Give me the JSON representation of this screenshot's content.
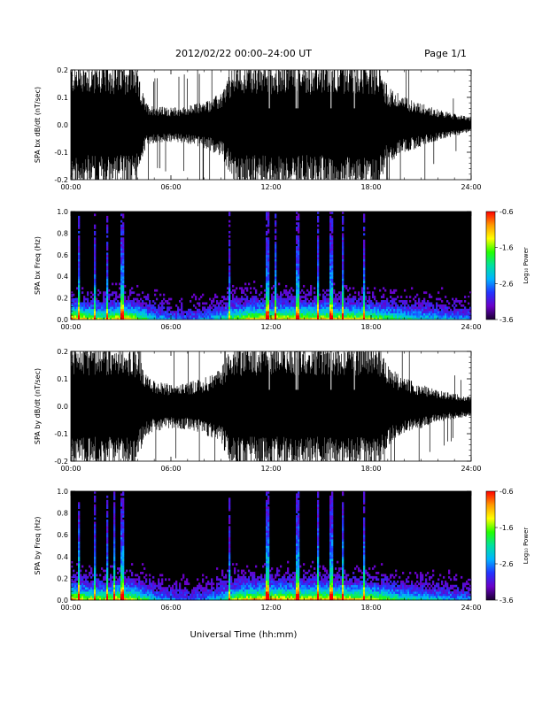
{
  "header": {
    "title": "2012/02/22  00:00–24:00 UT",
    "page": "Page 1/1"
  },
  "xaxis_title": "Universal Time (hh:mm)",
  "colors": {
    "background": "#ffffff",
    "signal": "#000000",
    "spectrogram_background": "#000000",
    "colormap": [
      "#1a0030",
      "#6a00c8",
      "#2233ff",
      "#00b4ff",
      "#00e0a0",
      "#22ff00",
      "#ffff00",
      "#ff9900",
      "#ff0000"
    ]
  },
  "chart_data": [
    {
      "type": "line",
      "id": "bx-waveform",
      "ylabel": "SPA bx dB/dt (nT/sec)",
      "xlim": [
        0,
        24
      ],
      "ylim": [
        -0.2,
        0.2
      ],
      "xticks": [
        "00:00",
        "06:00",
        "12:00",
        "18:00",
        "24:00"
      ],
      "yticks": [
        "-0.2",
        "-0.1",
        "0.0",
        "0.1",
        "0.2"
      ],
      "series": [
        {
          "x": [
            0,
            1,
            2,
            3,
            3.8,
            4.5,
            5,
            6,
            7,
            8,
            9,
            9.5,
            10,
            11,
            12,
            13,
            14,
            15,
            16,
            17,
            18,
            18.5,
            19,
            20,
            21,
            22,
            23,
            24
          ],
          "amp": [
            0.2,
            0.2,
            0.2,
            0.2,
            0.2,
            0.07,
            0.06,
            0.055,
            0.06,
            0.075,
            0.1,
            0.16,
            0.2,
            0.2,
            0.2,
            0.2,
            0.2,
            0.2,
            0.2,
            0.2,
            0.2,
            0.2,
            0.12,
            0.09,
            0.07,
            0.05,
            0.035,
            0.025
          ]
        }
      ]
    },
    {
      "type": "heatmap",
      "id": "bx-spectrogram",
      "ylabel": "SPA bx Freq (Hz)",
      "xlim": [
        0,
        24
      ],
      "ylim": [
        0.0,
        1.0
      ],
      "xticks": [
        "00:00",
        "06:00",
        "12:00",
        "18:00",
        "24:00"
      ],
      "yticks": [
        "0.0",
        "0.2",
        "0.4",
        "0.6",
        "0.8",
        "1.0"
      ],
      "colorbar": {
        "label": "Log₁₀ Power",
        "ticks": [
          "-0.6",
          "-1.6",
          "-2.6",
          "-3.6"
        ],
        "range": [
          -3.6,
          -0.6
        ]
      },
      "activity": {
        "x": [
          0,
          1,
          2,
          3,
          4,
          5,
          6,
          7,
          8,
          9,
          10,
          11,
          12,
          13,
          14,
          15,
          16,
          17,
          18,
          19,
          20,
          21,
          22,
          23,
          24
        ],
        "amp": [
          0.95,
          0.8,
          0.7,
          0.9,
          0.75,
          0.45,
          0.35,
          0.3,
          0.35,
          0.5,
          0.75,
          0.85,
          0.85,
          0.85,
          0.85,
          0.85,
          0.85,
          0.8,
          0.75,
          0.65,
          0.55,
          0.5,
          0.45,
          0.4,
          0.35
        ]
      },
      "spikes": [
        0.5,
        1.4,
        2.2,
        3.0,
        3.1,
        9.5,
        11.8,
        12.3,
        13.6,
        14.8,
        15.6,
        16.3,
        17.6
      ]
    },
    {
      "type": "line",
      "id": "by-waveform",
      "ylabel": "SPA by dB/dt (nT/sec)",
      "xlim": [
        0,
        24
      ],
      "ylim": [
        -0.2,
        0.2
      ],
      "xticks": [
        "00:00",
        "06:00",
        "12:00",
        "18:00",
        "24:00"
      ],
      "yticks": [
        "-0.2",
        "-0.1",
        "0.0",
        "0.1",
        "0.2"
      ],
      "series": [
        {
          "x": [
            0,
            1,
            2,
            3,
            3.8,
            4.5,
            5,
            6,
            7,
            8,
            9,
            9.5,
            10,
            11,
            12,
            13,
            14,
            15,
            16,
            17,
            18,
            18.5,
            19,
            20,
            21,
            22,
            23,
            24
          ],
          "amp": [
            0.2,
            0.2,
            0.2,
            0.2,
            0.2,
            0.1,
            0.08,
            0.07,
            0.075,
            0.09,
            0.12,
            0.18,
            0.2,
            0.2,
            0.2,
            0.2,
            0.2,
            0.2,
            0.2,
            0.2,
            0.2,
            0.2,
            0.13,
            0.09,
            0.07,
            0.05,
            0.04,
            0.03
          ]
        }
      ]
    },
    {
      "type": "heatmap",
      "id": "by-spectrogram",
      "ylabel": "SPA by Freq (Hz)",
      "xlim": [
        0,
        24
      ],
      "ylim": [
        0.0,
        1.0
      ],
      "xticks": [
        "00:00",
        "06:00",
        "12:00",
        "18:00",
        "24:00"
      ],
      "yticks": [
        "0.0",
        "0.2",
        "0.4",
        "0.6",
        "0.8",
        "1.0"
      ],
      "colorbar": {
        "label": "Log₁₀ Power",
        "ticks": [
          "-0.6",
          "-1.6",
          "-2.6",
          "-3.6"
        ],
        "range": [
          -3.6,
          -0.6
        ]
      },
      "activity": {
        "x": [
          0,
          1,
          2,
          3,
          4,
          5,
          6,
          7,
          8,
          9,
          10,
          11,
          12,
          13,
          14,
          15,
          16,
          17,
          18,
          19,
          20,
          21,
          22,
          23,
          24
        ],
        "amp": [
          0.95,
          0.8,
          0.75,
          0.9,
          0.75,
          0.45,
          0.35,
          0.3,
          0.35,
          0.5,
          0.8,
          0.9,
          0.95,
          0.9,
          0.9,
          0.9,
          0.9,
          0.85,
          0.8,
          0.7,
          0.55,
          0.5,
          0.45,
          0.4,
          0.35
        ]
      },
      "spikes": [
        0.5,
        1.4,
        2.2,
        2.6,
        3.0,
        3.1,
        9.5,
        11.8,
        13.6,
        14.8,
        15.6,
        16.3,
        17.6
      ]
    }
  ]
}
